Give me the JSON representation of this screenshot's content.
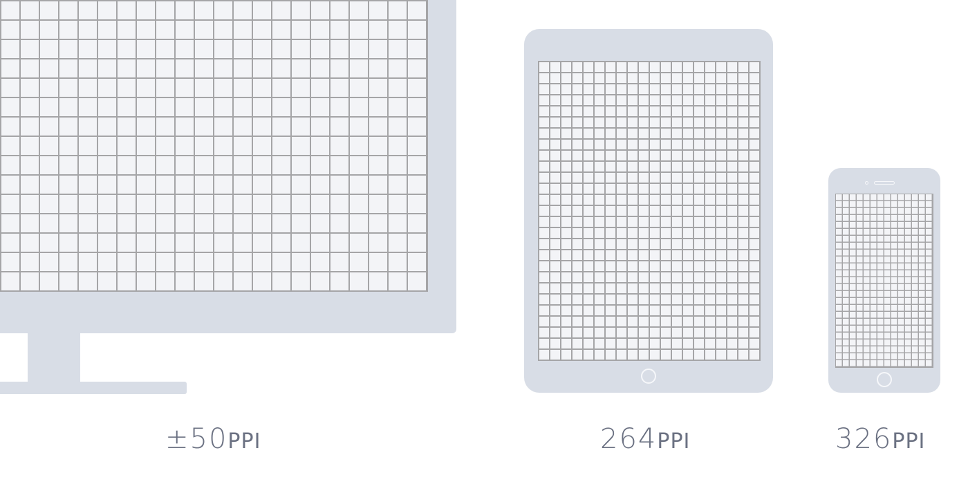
{
  "devices": {
    "monitor": {
      "value": "±50",
      "unit": "PPI"
    },
    "tablet": {
      "value": "264",
      "unit": "PPI"
    },
    "phone": {
      "value": "326",
      "unit": "PPI"
    }
  },
  "colors": {
    "frame": "#d8dde6",
    "screen": "#f3f4f7",
    "grid_line": "#a5a5a7",
    "label_text": "#6b7182"
  }
}
